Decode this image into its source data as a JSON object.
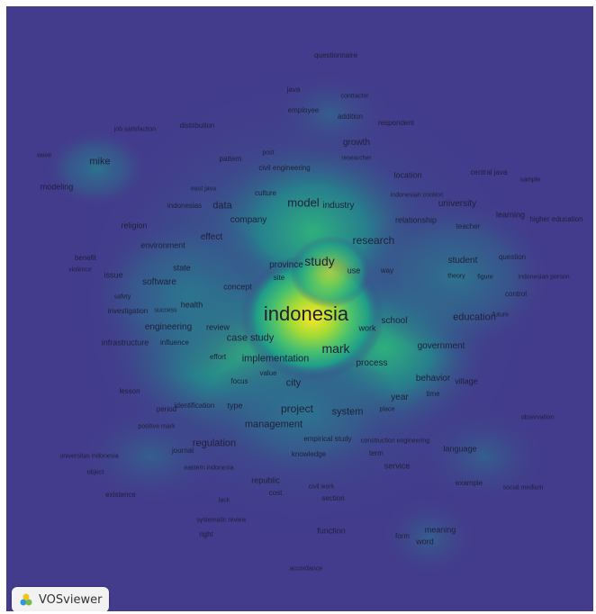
{
  "app": {
    "name": "VOSviewer",
    "logo_icon": "vosviewer-logo-icon"
  },
  "colors": {
    "background": "#433b8c",
    "low": "#2f7b8e",
    "mid": "#22a884",
    "high": "#7ad151",
    "peak": "#fde725",
    "text": "#1f1f3a"
  },
  "terms": [
    "questionnaire",
    "java",
    "contractor",
    "employee",
    "addition",
    "respondent",
    "job satisfaction",
    "distribution",
    "growth",
    "post",
    "researcher",
    "wave",
    "mike",
    "pattern",
    "civil engineering",
    "location",
    "central java",
    "sample",
    "modeling",
    "east java",
    "culture",
    "indonesian context",
    "indonesias",
    "data",
    "model",
    "industry",
    "university",
    "learning",
    "higher education",
    "religion",
    "company",
    "relationship",
    "teacher",
    "environment",
    "effect",
    "research",
    "benefit",
    "question",
    "province",
    "study",
    "student",
    "violence",
    "issue",
    "state",
    "site",
    "use",
    "way",
    "theory",
    "figure",
    "indonesian person",
    "software",
    "concept",
    "control",
    "safety",
    "health",
    "indonesia",
    "investigation",
    "success",
    "school",
    "education",
    "future",
    "work",
    "engineering",
    "review",
    "case study",
    "infrastructure",
    "influence",
    "mark",
    "government",
    "effort",
    "implementation",
    "process",
    "value",
    "focus",
    "city",
    "behavior",
    "village",
    "lesson",
    "year",
    "time",
    "period",
    "identification",
    "type",
    "project",
    "system",
    "place",
    "observation",
    "positive mark",
    "management",
    "journal",
    "regulation",
    "empirical study",
    "construction engineering",
    "knowledge",
    "term",
    "language",
    "universitas indonesia",
    "service",
    "object",
    "eastern indonesia",
    "republic",
    "example",
    "civil work",
    "social medium",
    "cost",
    "existence",
    "lack",
    "section",
    "systematic review",
    "function",
    "meaning",
    "form",
    "right",
    "word",
    "accordance"
  ]
}
